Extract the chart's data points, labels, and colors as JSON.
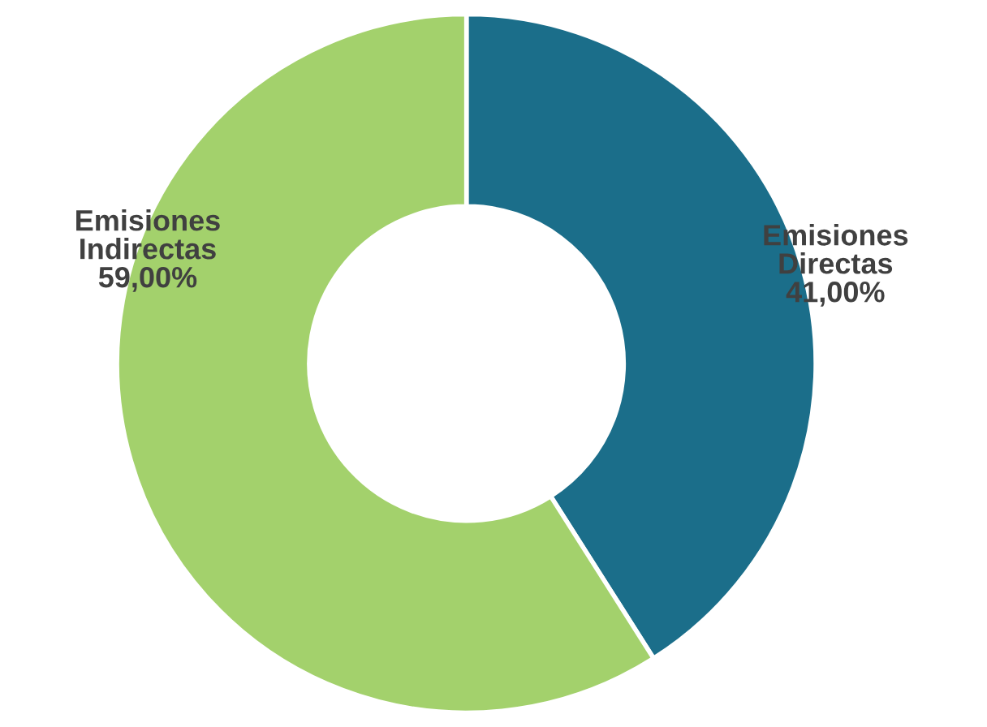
{
  "chart_data": {
    "type": "donut",
    "categories": [
      "Emisiones Directas",
      "Emisiones Indirectas"
    ],
    "values": [
      41,
      59
    ],
    "colors": [
      "#1b6e8a",
      "#a3d16c"
    ],
    "value_labels": [
      "41,00%",
      "59,00%"
    ],
    "legend": false
  }
}
